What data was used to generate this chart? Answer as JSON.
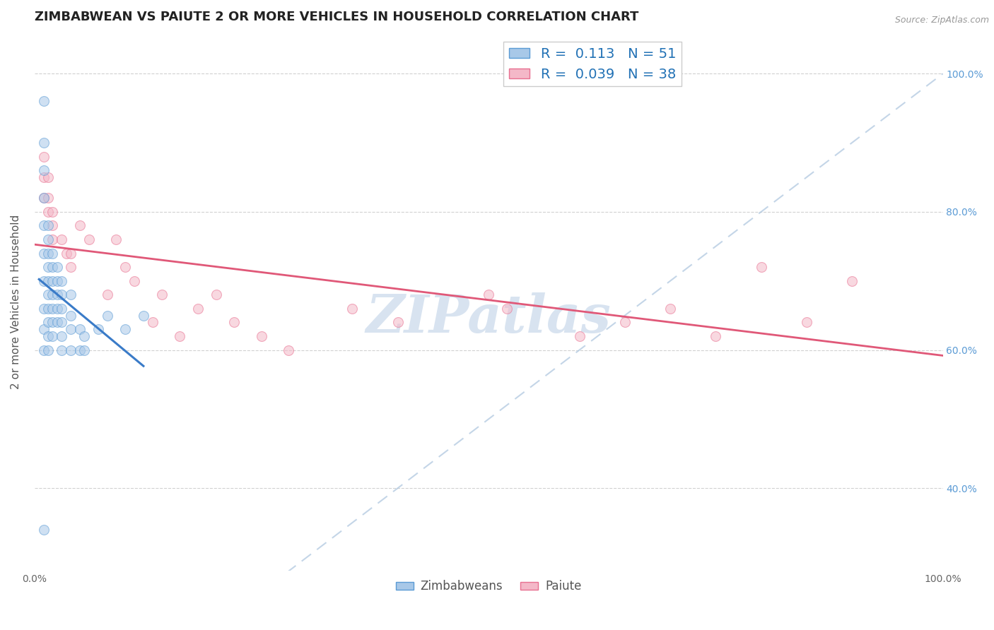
{
  "title": "ZIMBABWEAN VS PAIUTE 2 OR MORE VEHICLES IN HOUSEHOLD CORRELATION CHART",
  "source_text": "Source: ZipAtlas.com",
  "ylabel": "2 or more Vehicles in Household",
  "legend_entry1": "R =  0.113   N = 51",
  "legend_entry2": "R =  0.039   N = 38",
  "blue_color": "#a8c8e8",
  "pink_color": "#f4b8c8",
  "blue_edge_color": "#5b9bd5",
  "pink_edge_color": "#e87090",
  "blue_line_color": "#3a7bc8",
  "pink_line_color": "#e05878",
  "diagonal_color": "#b0c8e0",
  "watermark_color": "#c8d8ea",
  "zimbabwean_x": [
    0.01,
    0.01,
    0.01,
    0.01,
    0.01,
    0.01,
    0.01,
    0.01,
    0.01,
    0.01,
    0.015,
    0.015,
    0.015,
    0.015,
    0.015,
    0.015,
    0.015,
    0.015,
    0.015,
    0.015,
    0.02,
    0.02,
    0.02,
    0.02,
    0.02,
    0.02,
    0.02,
    0.025,
    0.025,
    0.025,
    0.025,
    0.025,
    0.03,
    0.03,
    0.03,
    0.03,
    0.03,
    0.03,
    0.04,
    0.04,
    0.04,
    0.04,
    0.05,
    0.05,
    0.055,
    0.055,
    0.07,
    0.08,
    0.1,
    0.12,
    0.01
  ],
  "zimbabwean_y": [
    0.96,
    0.9,
    0.86,
    0.82,
    0.78,
    0.74,
    0.7,
    0.66,
    0.63,
    0.6,
    0.78,
    0.76,
    0.74,
    0.72,
    0.7,
    0.68,
    0.66,
    0.64,
    0.62,
    0.6,
    0.74,
    0.72,
    0.7,
    0.68,
    0.66,
    0.64,
    0.62,
    0.72,
    0.7,
    0.68,
    0.66,
    0.64,
    0.7,
    0.68,
    0.66,
    0.64,
    0.62,
    0.6,
    0.68,
    0.65,
    0.63,
    0.6,
    0.63,
    0.6,
    0.62,
    0.6,
    0.63,
    0.65,
    0.63,
    0.65,
    0.34
  ],
  "paiute_x": [
    0.01,
    0.01,
    0.01,
    0.015,
    0.015,
    0.015,
    0.02,
    0.02,
    0.02,
    0.03,
    0.035,
    0.04,
    0.04,
    0.05,
    0.06,
    0.08,
    0.09,
    0.1,
    0.11,
    0.13,
    0.14,
    0.16,
    0.18,
    0.2,
    0.22,
    0.25,
    0.28,
    0.35,
    0.4,
    0.5,
    0.52,
    0.6,
    0.65,
    0.7,
    0.75,
    0.8,
    0.85,
    0.9
  ],
  "paiute_y": [
    0.88,
    0.85,
    0.82,
    0.85,
    0.82,
    0.8,
    0.8,
    0.78,
    0.76,
    0.76,
    0.74,
    0.74,
    0.72,
    0.78,
    0.76,
    0.68,
    0.76,
    0.72,
    0.7,
    0.64,
    0.68,
    0.62,
    0.66,
    0.68,
    0.64,
    0.62,
    0.6,
    0.66,
    0.64,
    0.68,
    0.66,
    0.62,
    0.64,
    0.66,
    0.62,
    0.72,
    0.64,
    0.7
  ],
  "xlim": [
    0.0,
    1.0
  ],
  "ylim": [
    0.28,
    1.06
  ],
  "yticks": [
    0.4,
    0.6,
    0.8,
    1.0
  ],
  "ytick_labels": [
    "40.0%",
    "60.0%",
    "80.0%",
    "100.0%"
  ],
  "title_fontsize": 13,
  "axis_label_fontsize": 11,
  "tick_fontsize": 10,
  "legend_fontsize": 14,
  "marker_size": 100,
  "marker_alpha": 0.55
}
